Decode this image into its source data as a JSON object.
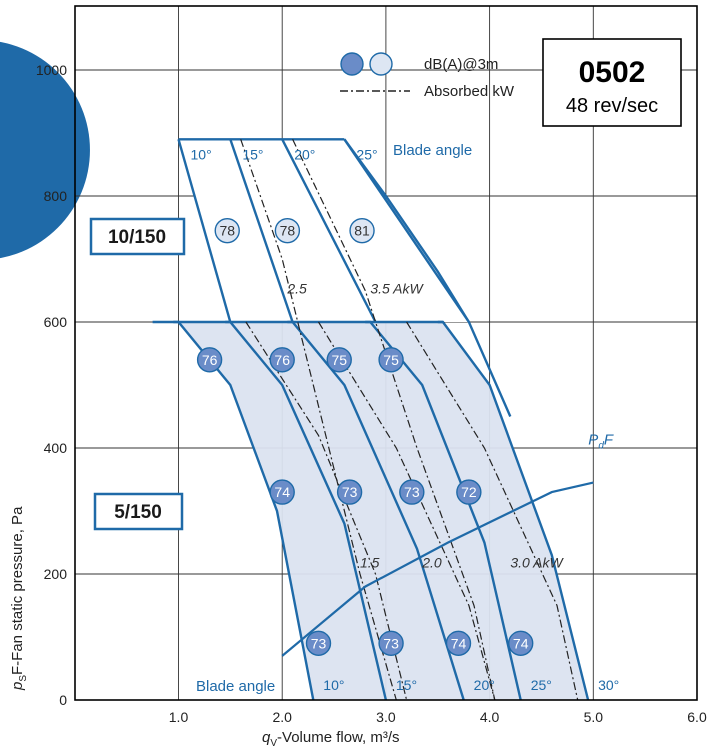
{
  "chart_data": {
    "type": "line",
    "model": "0502",
    "speed": "48 rev/sec",
    "xlabel_q": "q",
    "xlabel_sub": "V",
    "xlabel_rest": "-Volume flow, m³/s",
    "ylabel_p": "p",
    "ylabel_sub": "S",
    "ylabel_rest": "F-Fan static pressure, Pa",
    "xlim": [
      1.0,
      6.0
    ],
    "ylim": [
      0,
      1100
    ],
    "x_ticks": [
      "1.0",
      "2.0",
      "3.0",
      "4.0",
      "5.0",
      "6.0"
    ],
    "y_ticks": [
      "0",
      "200",
      "400",
      "600",
      "800",
      "1000"
    ],
    "grid": true,
    "legend": {
      "sound": "dB(A)@3m",
      "power": "Absorbed kW",
      "colors": {
        "filled": "#6a8cc8",
        "open": "#dde6f3"
      }
    },
    "colors": {
      "curve": "#1f6aa8",
      "fill": "#dbe3f0",
      "text": "#1f6aa8"
    },
    "blade_angle_label": "Blade angle",
    "fan_sizes": [
      {
        "label": "10/150",
        "blade_angles": [
          {
            "angle": "10°",
            "top": [
              [
                1.0,
                890
              ],
              [
                1.5,
                600
              ]
            ]
          },
          {
            "angle": "15°",
            "top": [
              [
                1.5,
                890
              ],
              [
                2.1,
                600
              ]
            ]
          },
          {
            "angle": "20°",
            "top": [
              [
                2.0,
                890
              ],
              [
                2.9,
                600
              ]
            ]
          },
          {
            "angle": "25°",
            "top": [
              [
                2.6,
                890
              ],
              [
                3.8,
                600
              ]
            ]
          }
        ],
        "sound_points": [
          {
            "x": 1.47,
            "y": 745,
            "dB": "78"
          },
          {
            "x": 2.05,
            "y": 745,
            "dB": "78"
          },
          {
            "x": 2.77,
            "y": 745,
            "dB": "81"
          }
        ],
        "power_labels": [
          {
            "x": 2.05,
            "y": 645,
            "text": "2.5"
          },
          {
            "x": 2.85,
            "y": 645,
            "text": "3.5 AkW"
          }
        ]
      },
      {
        "label": "5/150",
        "blade_angles": [
          {
            "angle": "10°",
            "boundary": [
              [
                1.0,
                600
              ],
              [
                1.5,
                500
              ],
              [
                1.95,
                300
              ],
              [
                2.3,
                0
              ]
            ]
          },
          {
            "angle": "15°",
            "boundary": [
              [
                1.5,
                600
              ],
              [
                2.0,
                500
              ],
              [
                2.6,
                280
              ],
              [
                3.0,
                0
              ]
            ]
          },
          {
            "angle": "20°",
            "boundary": [
              [
                2.1,
                600
              ],
              [
                2.6,
                500
              ],
              [
                3.3,
                240
              ],
              [
                3.75,
                0
              ]
            ]
          },
          {
            "angle": "25°",
            "boundary": [
              [
                2.85,
                600
              ],
              [
                3.35,
                500
              ],
              [
                3.95,
                250
              ],
              [
                4.3,
                0
              ]
            ]
          },
          {
            "angle": "30°",
            "boundary": [
              [
                3.55,
                600
              ],
              [
                4.0,
                500
              ],
              [
                4.6,
                230
              ],
              [
                4.95,
                0
              ]
            ]
          }
        ],
        "sound_points": [
          {
            "x": 1.3,
            "y": 540,
            "dB": "76"
          },
          {
            "x": 2.0,
            "y": 540,
            "dB": "76"
          },
          {
            "x": 2.55,
            "y": 540,
            "dB": "75"
          },
          {
            "x": 3.05,
            "y": 540,
            "dB": "75"
          },
          {
            "x": 2.0,
            "y": 330,
            "dB": "74"
          },
          {
            "x": 2.65,
            "y": 330,
            "dB": "73"
          },
          {
            "x": 3.25,
            "y": 330,
            "dB": "73"
          },
          {
            "x": 3.8,
            "y": 330,
            "dB": "72"
          },
          {
            "x": 2.35,
            "y": 90,
            "dB": "73"
          },
          {
            "x": 3.05,
            "y": 90,
            "dB": "73"
          },
          {
            "x": 3.7,
            "y": 90,
            "dB": "74"
          },
          {
            "x": 4.3,
            "y": 90,
            "dB": "74"
          }
        ],
        "power_labels": [
          {
            "x": 2.75,
            "y": 210,
            "text": "1.5"
          },
          {
            "x": 3.35,
            "y": 210,
            "text": "2.0"
          },
          {
            "x": 4.2,
            "y": 210,
            "text": "3.0 AkW"
          }
        ]
      }
    ],
    "pdf_line": {
      "label_p": "P",
      "label_sub": "d",
      "label_rest": "F",
      "points": [
        [
          2.0,
          70
        ],
        [
          2.8,
          180
        ],
        [
          3.6,
          250
        ],
        [
          4.6,
          330
        ],
        [
          5.0,
          345
        ]
      ]
    }
  }
}
